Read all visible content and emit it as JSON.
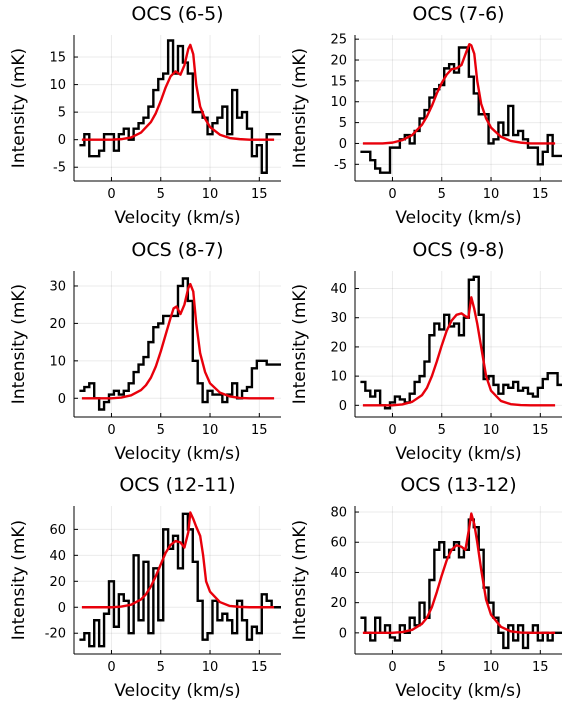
{
  "chart_data": [
    {
      "type": "line",
      "title": "OCS (6-5)",
      "xlabel": "Velocity (km/s)",
      "ylabel": "Intensity (mK)",
      "xlim": [
        -3.8,
        17.2
      ],
      "ylim": [
        -7.5,
        19
      ],
      "xticks": [
        0,
        5,
        10,
        15
      ],
      "yticks": [
        -5,
        0,
        5,
        10,
        15
      ],
      "grid": true,
      "series": [
        {
          "style": "step",
          "color": "#000000",
          "x": [
            -3.0,
            -2.5,
            -2.0,
            -1.5,
            -1.0,
            -0.5,
            0.0,
            0.5,
            1.0,
            1.5,
            2.0,
            2.5,
            3.0,
            3.5,
            4.0,
            4.5,
            5.0,
            5.5,
            6.0,
            6.5,
            7.0,
            7.5,
            8.0,
            8.5,
            9.0,
            9.5,
            10.0,
            10.5,
            11.0,
            11.5,
            12.0,
            12.5,
            13.0,
            13.5,
            14.0,
            14.5,
            15.0,
            15.5,
            16.0,
            16.5,
            17.0
          ],
          "y": [
            -1,
            1,
            -3,
            -3,
            -2,
            1,
            1,
            -2,
            1,
            2,
            0,
            2,
            3,
            4,
            6,
            9,
            11,
            12,
            18,
            12,
            17,
            14,
            12,
            5,
            5,
            4,
            1,
            3,
            4,
            6,
            1,
            9,
            4,
            5,
            2,
            -3,
            -1,
            -6,
            1,
            1,
            1
          ]
        },
        {
          "style": "line",
          "color": "#e8000b",
          "x": [
            -3.0,
            0.0,
            1.0,
            2.0,
            3.0,
            4.0,
            4.5,
            5.0,
            5.5,
            6.0,
            6.5,
            7.0,
            7.4,
            7.8,
            8.0,
            8.3,
            8.6,
            9.0,
            9.5,
            10.0,
            11.0,
            12.0,
            13.0,
            14.0,
            16.5
          ],
          "y": [
            0,
            0,
            0.1,
            0.4,
            1.3,
            3.2,
            4.8,
            7.0,
            9.5,
            11.5,
            12.4,
            11.8,
            13.5,
            16.5,
            17.2,
            15.5,
            10.0,
            6.0,
            3.8,
            2.3,
            0.9,
            0.3,
            0.1,
            0,
            0
          ]
        }
      ]
    },
    {
      "type": "line",
      "title": "OCS (7-6)",
      "xlabel": "Velocity (km/s)",
      "ylabel": "Intensity (mK)",
      "xlim": [
        -3.8,
        17.2
      ],
      "ylim": [
        -9,
        26
      ],
      "xticks": [
        0,
        5,
        10,
        15
      ],
      "yticks": [
        -5,
        0,
        5,
        10,
        15,
        20,
        25
      ],
      "grid": true,
      "series": [
        {
          "style": "step",
          "color": "#000000",
          "x": [
            -3.0,
            -2.5,
            -2.0,
            -1.5,
            -1.0,
            -0.5,
            0.0,
            0.5,
            1.0,
            1.5,
            2.0,
            2.5,
            3.0,
            3.5,
            4.0,
            4.5,
            5.0,
            5.5,
            6.0,
            6.5,
            7.0,
            7.5,
            8.0,
            8.5,
            9.0,
            9.5,
            10.0,
            10.5,
            11.0,
            11.5,
            12.0,
            12.5,
            13.0,
            13.5,
            14.0,
            14.5,
            15.0,
            15.5,
            16.0,
            16.5,
            17.0
          ],
          "y": [
            -2,
            -2,
            -4,
            -6,
            -7,
            -7,
            -1,
            -1,
            1,
            2,
            0,
            3,
            6,
            8,
            11,
            13,
            14,
            18,
            19,
            17,
            23,
            23,
            16,
            12,
            7,
            7,
            0,
            1,
            5,
            2,
            9,
            2,
            3,
            1,
            -1,
            -1,
            -5,
            -2,
            2,
            -3,
            -3
          ]
        },
        {
          "style": "line",
          "color": "#e8000b",
          "x": [
            -3.0,
            -1.0,
            0.0,
            1.0,
            2.0,
            3.0,
            3.5,
            4.0,
            4.5,
            5.0,
            5.5,
            6.0,
            6.5,
            7.0,
            7.5,
            7.8,
            8.0,
            8.3,
            8.6,
            9.0,
            9.5,
            10.0,
            11.0,
            12.0,
            13.0,
            14.0,
            16.5
          ],
          "y": [
            0,
            0,
            0.2,
            0.8,
            2.0,
            4.5,
            6.5,
            9.0,
            12.0,
            14.5,
            16.5,
            17.8,
            18.0,
            18.8,
            22.0,
            23.8,
            23.5,
            21.5,
            15.0,
            9.5,
            6.0,
            3.8,
            1.6,
            0.6,
            0.2,
            0,
            0
          ]
        }
      ]
    },
    {
      "type": "line",
      "title": "OCS (8-7)",
      "xlabel": "Velocity (km/s)",
      "ylabel": "Intensity (mK)",
      "xlim": [
        -3.8,
        17.2
      ],
      "ylim": [
        -5,
        34
      ],
      "xticks": [
        0,
        5,
        10,
        15
      ],
      "yticks": [
        0,
        10,
        20,
        30
      ],
      "grid": true,
      "series": [
        {
          "style": "step",
          "color": "#000000",
          "x": [
            -3.0,
            -2.5,
            -2.0,
            -1.5,
            -1.0,
            -0.5,
            0.0,
            0.5,
            1.0,
            1.5,
            2.0,
            2.5,
            3.0,
            3.5,
            4.0,
            4.5,
            5.0,
            5.5,
            6.0,
            6.5,
            7.0,
            7.5,
            8.0,
            8.5,
            9.0,
            9.5,
            10.0,
            10.5,
            11.0,
            11.5,
            12.0,
            12.5,
            13.0,
            13.5,
            14.0,
            14.5,
            15.0,
            15.5,
            16.0,
            16.5,
            17.0
          ],
          "y": [
            2,
            3,
            4,
            0,
            -3,
            -1,
            1,
            2,
            1,
            2,
            4,
            7,
            9,
            11,
            15,
            19,
            20,
            22,
            22,
            22,
            30,
            32,
            26,
            10,
            4,
            -1,
            2,
            1,
            1,
            -1,
            1,
            4,
            0,
            2,
            3,
            8,
            10,
            10,
            9,
            9,
            9
          ]
        },
        {
          "style": "line",
          "color": "#e8000b",
          "x": [
            -3.0,
            0.0,
            1.0,
            2.0,
            3.0,
            3.5,
            4.0,
            4.5,
            5.0,
            5.5,
            6.0,
            6.3,
            6.6,
            7.0,
            7.4,
            7.8,
            8.0,
            8.3,
            8.6,
            9.0,
            9.5,
            10.0,
            11.0,
            12.0,
            13.0,
            14.0,
            16.5
          ],
          "y": [
            0,
            0,
            0.2,
            0.8,
            2.2,
            3.5,
            5.5,
            8.5,
            12.5,
            17.0,
            21.5,
            24.0,
            24.5,
            22.5,
            25.0,
            29.5,
            30.5,
            28.5,
            20.0,
            12.0,
            7.0,
            4.0,
            1.5,
            0.5,
            0.1,
            0,
            0
          ]
        }
      ]
    },
    {
      "type": "line",
      "title": "OCS (9-8)",
      "xlabel": "Velocity (km/s)",
      "ylabel": "Intensity (mK)",
      "xlim": [
        -3.8,
        17.2
      ],
      "ylim": [
        -4,
        46
      ],
      "xticks": [
        0,
        5,
        10,
        15
      ],
      "yticks": [
        0,
        10,
        20,
        30,
        40
      ],
      "grid": true,
      "series": [
        {
          "style": "step",
          "color": "#000000",
          "x": [
            -3.0,
            -2.5,
            -2.0,
            -1.5,
            -1.0,
            -0.5,
            0.0,
            0.5,
            1.0,
            1.5,
            2.0,
            2.5,
            3.0,
            3.5,
            4.0,
            4.5,
            5.0,
            5.5,
            6.0,
            6.5,
            7.0,
            7.5,
            8.0,
            8.5,
            9.0,
            9.5,
            10.0,
            10.5,
            11.0,
            11.5,
            12.0,
            12.5,
            13.0,
            13.5,
            14.0,
            14.5,
            15.0,
            15.5,
            16.0,
            16.5,
            17.0
          ],
          "y": [
            8,
            5,
            3,
            5,
            0,
            -1,
            1,
            3,
            2,
            1,
            4,
            8,
            10,
            15,
            24,
            28,
            26,
            31,
            27,
            28,
            24,
            30,
            43,
            44,
            31,
            9,
            10,
            7,
            4,
            7,
            6,
            8,
            5,
            6,
            4,
            3,
            6,
            9,
            11,
            11,
            7
          ]
        },
        {
          "style": "line",
          "color": "#e8000b",
          "x": [
            -3.0,
            0.0,
            1.0,
            2.0,
            3.0,
            3.5,
            4.0,
            4.5,
            5.0,
            5.5,
            6.0,
            6.5,
            7.0,
            7.4,
            7.7,
            8.0,
            8.3,
            8.6,
            9.0,
            9.5,
            10.0,
            11.0,
            12.0,
            13.0,
            14.0,
            16.5
          ],
          "y": [
            0,
            0,
            0.3,
            1.2,
            3.5,
            6.0,
            10.0,
            15.0,
            20.5,
            25.5,
            29.0,
            31.0,
            31.5,
            30.5,
            30.0,
            37.0,
            33.0,
            28.0,
            20.0,
            10.0,
            5.0,
            1.5,
            0.4,
            0.1,
            0,
            0
          ]
        }
      ]
    },
    {
      "type": "line",
      "title": "OCS (12-11)",
      "xlabel": "Velocity (km/s)",
      "ylabel": "Intensity (mK)",
      "xlim": [
        -3.8,
        17.2
      ],
      "ylim": [
        -36,
        78
      ],
      "xticks": [
        0,
        5,
        10,
        15
      ],
      "yticks": [
        -20,
        0,
        20,
        40,
        60
      ],
      "grid": true,
      "series": [
        {
          "style": "step",
          "color": "#000000",
          "x": [
            -3.0,
            -2.5,
            -2.0,
            -1.5,
            -1.0,
            -0.5,
            0.0,
            0.5,
            1.0,
            1.5,
            2.0,
            2.5,
            3.0,
            3.5,
            4.0,
            4.5,
            5.0,
            5.5,
            6.0,
            6.5,
            7.0,
            7.5,
            8.0,
            8.5,
            9.0,
            9.5,
            10.0,
            10.5,
            11.0,
            11.5,
            12.0,
            12.5,
            13.0,
            13.5,
            14.0,
            14.5,
            15.0,
            15.5,
            16.0,
            16.5,
            17.0
          ],
          "y": [
            -25,
            -20,
            -30,
            -10,
            -30,
            -5,
            20,
            -15,
            10,
            5,
            -20,
            40,
            -10,
            35,
            -20,
            30,
            -10,
            60,
            45,
            55,
            30,
            72,
            60,
            35,
            5,
            -25,
            -20,
            5,
            -10,
            -5,
            -10,
            -20,
            5,
            -10,
            -25,
            -15,
            -20,
            10,
            5,
            0,
            0
          ]
        },
        {
          "style": "line",
          "color": "#e8000b",
          "x": [
            -3.0,
            0.0,
            1.0,
            2.0,
            3.0,
            3.5,
            4.0,
            4.5,
            5.0,
            5.5,
            6.0,
            6.5,
            7.0,
            7.4,
            7.8,
            8.0,
            8.3,
            8.6,
            9.0,
            9.3,
            9.6,
            10.0,
            11.0,
            12.0,
            13.0,
            14.0,
            16.5
          ],
          "y": [
            0,
            0,
            0.5,
            2,
            6,
            10,
            16,
            24,
            33,
            42,
            48,
            51,
            50,
            46,
            58,
            73,
            68,
            62,
            55,
            40,
            20,
            12,
            4,
            1,
            0.3,
            0,
            0
          ]
        }
      ]
    },
    {
      "type": "line",
      "title": "OCS (13-12)",
      "xlabel": "Velocity (km/s)",
      "ylabel": "Intensity (mK)",
      "xlim": [
        -3.8,
        17.2
      ],
      "ylim": [
        -14,
        84
      ],
      "xticks": [
        0,
        5,
        10,
        15
      ],
      "yticks": [
        0,
        20,
        40,
        60,
        80
      ],
      "grid": true,
      "series": [
        {
          "style": "step",
          "color": "#000000",
          "x": [
            -3.0,
            -2.5,
            -2.0,
            -1.5,
            -1.0,
            -0.5,
            0.0,
            0.5,
            1.0,
            1.5,
            2.0,
            2.5,
            3.0,
            3.5,
            4.0,
            4.5,
            5.0,
            5.5,
            6.0,
            6.5,
            7.0,
            7.5,
            8.0,
            8.5,
            9.0,
            9.5,
            10.0,
            10.5,
            11.0,
            11.5,
            12.0,
            12.5,
            13.0,
            13.5,
            14.0,
            14.5,
            15.0,
            15.5,
            16.0,
            16.5,
            17.0
          ],
          "y": [
            10,
            0,
            -5,
            10,
            0,
            5,
            -3,
            -5,
            5,
            0,
            10,
            5,
            20,
            10,
            35,
            55,
            60,
            50,
            55,
            60,
            50,
            55,
            75,
            70,
            55,
            30,
            20,
            10,
            0,
            -10,
            5,
            -5,
            5,
            -10,
            0,
            5,
            -5,
            0,
            -5,
            0,
            0
          ]
        },
        {
          "style": "line",
          "color": "#e8000b",
          "x": [
            -3.0,
            0.0,
            1.0,
            2.0,
            3.0,
            3.5,
            4.0,
            4.5,
            5.0,
            5.5,
            6.0,
            6.5,
            7.0,
            7.4,
            7.8,
            8.0,
            8.3,
            8.6,
            9.0,
            9.5,
            10.0,
            11.0,
            12.0,
            13.0,
            14.0,
            16.5
          ],
          "y": [
            0,
            0,
            0.5,
            2,
            6,
            10,
            17,
            27,
            38,
            48,
            55,
            58,
            57,
            55,
            70,
            79,
            72,
            60,
            42,
            22,
            12,
            4,
            1,
            0.2,
            0,
            0
          ]
        }
      ]
    }
  ]
}
